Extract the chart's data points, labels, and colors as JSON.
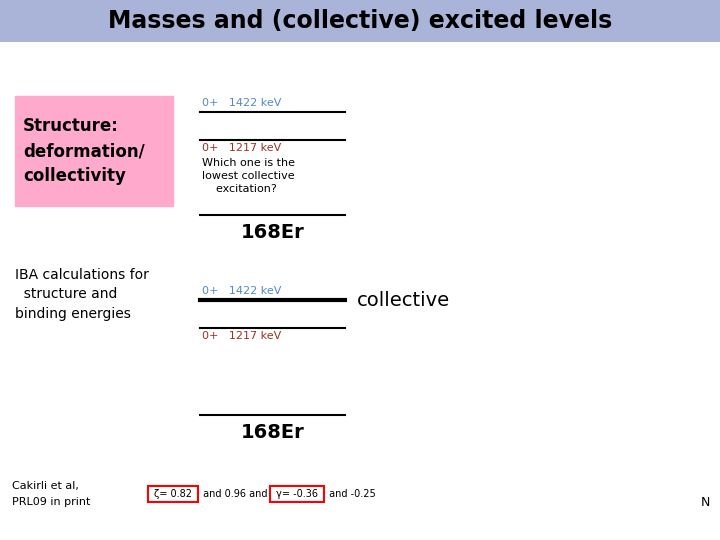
{
  "title": "Masses and (collective) excited levels",
  "title_bg": "#aab4d8",
  "bg_color": "#ffffff",
  "structure_label": "Structure:\ndeformation/\ncollectivity",
  "structure_box_color": "#ffaacc",
  "iba_label": "IBA calculations for\n  structure and\nbinding energies",
  "upper_level1_label": "0+   1422 keV",
  "upper_level2_label": "0+   1217 keV",
  "upper_question": "Which one is the\nlowest collective\n    excitation?",
  "upper_isotope": "168Er",
  "lower_level1_label": "0+   1422 keV",
  "lower_level2_label": "0+   1217 keV",
  "lower_collective": "collective",
  "lower_isotope": "168Er",
  "footer_left1": "Cakirli et al,",
  "footer_left2": "PRL09 in print",
  "footer_formula1": "ζ= 0.82",
  "footer_mid": " and 0.96 and ",
  "footer_formula2": "γ= -0.36",
  "footer_end": " and -0.25",
  "footer_N": "N",
  "upper_level1_color": "#5588cc",
  "upper_level2_color": "#993322",
  "lower_level1_color": "#5588cc",
  "lower_level2_color": "#993322",
  "title_fontsize": 17,
  "struct_fontsize": 12,
  "iba_fontsize": 10,
  "level_label_fontsize": 8,
  "question_fontsize": 8,
  "isotope_fontsize": 14,
  "collective_fontsize": 14,
  "footer_fontsize": 8,
  "footer_formula_fontsize": 7
}
